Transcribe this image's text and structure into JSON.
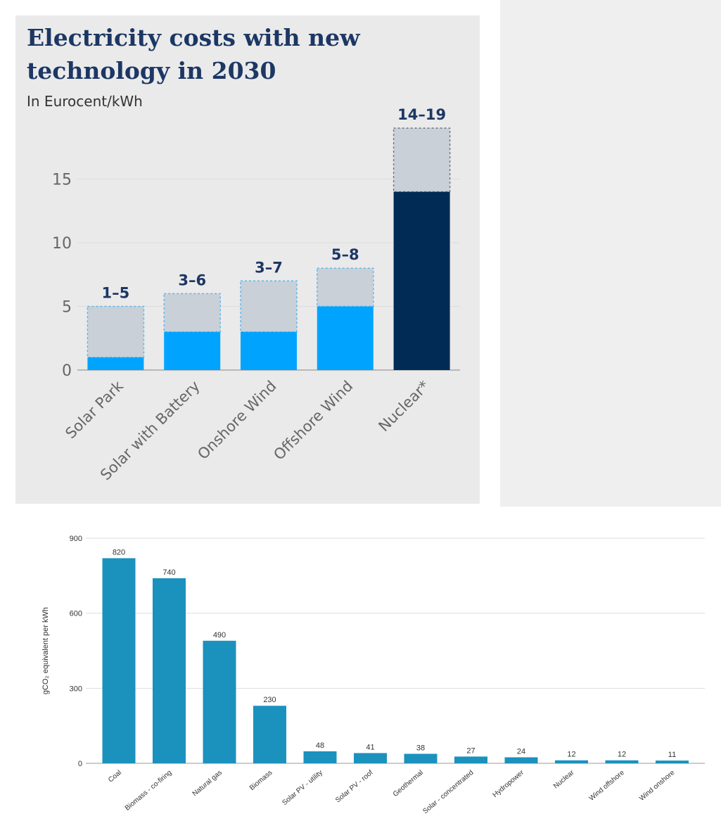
{
  "chart_data": [
    {
      "type": "bar",
      "title": "Electricity costs with new technology in 2030",
      "subtitle": "In Eurocent/kWh",
      "categories": [
        "Solar Park",
        "Solar with Battery",
        "Onshore Wind",
        "Offshore Wind",
        "Nuclear*"
      ],
      "series": [
        {
          "values": [
            1,
            3,
            3,
            5,
            14
          ]
        },
        {
          "values": [
            5,
            6,
            7,
            8,
            19
          ]
        }
      ],
      "range_labels": [
        "1–5",
        "3–6",
        "3–7",
        "5–8",
        "14–19"
      ],
      "yticks": [
        0,
        5,
        10,
        15
      ],
      "ylim": [
        0,
        19
      ],
      "grid": true,
      "colors": {
        "low_bar": "#00a4ff",
        "range_fill": "#c9d0d8",
        "nuclear_bar": "#012b55",
        "range_border_light": "#5fb8ea",
        "range_border_dark": "#6d7885",
        "label": "#1c3764"
      }
    },
    {
      "type": "bar",
      "categories": [
        "Coal",
        "Biomass - co-firing",
        "Natural gas",
        "Biomass",
        "Solar PV - utility",
        "Solar PV - roof",
        "Geothermal",
        "Solar - concentrated",
        "Hydropower",
        "Nuclear",
        "Wind offshore",
        "Wind onshore"
      ],
      "values": [
        820,
        740,
        490,
        230,
        48,
        41,
        38,
        27,
        24,
        12,
        12,
        11
      ],
      "ylabel": "gCO₂ equivalent per kWh",
      "yticks": [
        0,
        300,
        600,
        900
      ],
      "ylim": [
        0,
        900
      ],
      "grid": true,
      "colors": {
        "bar": "#1b91be",
        "grid": "#dddddd"
      }
    }
  ]
}
